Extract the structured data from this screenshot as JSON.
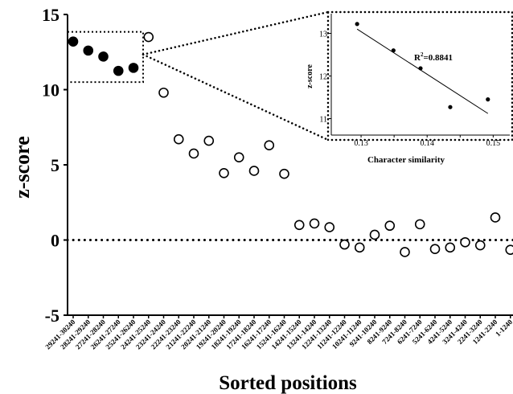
{
  "chart_data": [
    {
      "type": "scatter",
      "title": "",
      "xlabel": "Sorted positions",
      "ylabel": "z-score",
      "ylim": [
        -5,
        15
      ],
      "yticks": [
        "-5",
        "0",
        "5",
        "10",
        "15"
      ],
      "categories": [
        "29241-30240",
        "28241-29240",
        "27241-28240",
        "26241-27240",
        "25241-26240",
        "24241-25240",
        "23241-24240",
        "22241-23240",
        "21241-22240",
        "20241-21240",
        "19241-20240",
        "18241-19240",
        "17241-18240",
        "16241-17240",
        "15241-16240",
        "14241-15240",
        "13241-14240",
        "12241-13240",
        "11241-12240",
        "10241-11240",
        "9241-10240",
        "8241-9240",
        "7241-8240",
        "6241-7240",
        "5241-6240",
        "4241-5240",
        "3241-4240",
        "2241-3240",
        "1241-2240",
        "1-1240"
      ],
      "series": [
        {
          "values": [
            13.2,
            12.6,
            12.2,
            11.25,
            11.45,
            13.5,
            9.8,
            6.7,
            5.75,
            6.6,
            4.45,
            5.5,
            4.6,
            6.3,
            4.4,
            1.0,
            1.1,
            0.85,
            -0.3,
            -0.5,
            0.35,
            0.95,
            -0.8,
            1.05,
            -0.6,
            -0.5,
            -0.15,
            -0.35,
            1.5,
            -0.65
          ],
          "filled": [
            true,
            true,
            true,
            true,
            true,
            false,
            false,
            false,
            false,
            false,
            false,
            false,
            false,
            false,
            false,
            false,
            false,
            false,
            false,
            false,
            false,
            false,
            false,
            false,
            false,
            false,
            false,
            false,
            false,
            false
          ]
        }
      ],
      "reference_line": {
        "y": 0,
        "style": "dotted"
      },
      "grid": false,
      "legend": "none",
      "highlight_box": {
        "from_index": 0,
        "to_index": 4,
        "style": "dotted"
      }
    },
    {
      "type": "scatter",
      "title": "",
      "xlabel": "Character similarity",
      "ylabel": "z-score",
      "xticks": [
        "0.13",
        "0.135",
        "0.14",
        "0.145",
        "0.15"
      ],
      "xtick_labels_shown": [
        "0.13",
        "0.14",
        "0.15"
      ],
      "yticks": [
        "11",
        "12",
        "13"
      ],
      "xlim": [
        0.125,
        0.153
      ],
      "ylim": [
        10.5,
        13.5
      ],
      "points": [
        {
          "x": 0.1294,
          "y": 13.22
        },
        {
          "x": 0.1349,
          "y": 12.6
        },
        {
          "x": 0.139,
          "y": 12.18
        },
        {
          "x": 0.1435,
          "y": 11.27
        },
        {
          "x": 0.1492,
          "y": 11.45
        }
      ],
      "fit_line": {
        "x": [
          0.1294,
          0.1492
        ],
        "y": [
          13.1,
          11.12
        ]
      },
      "annotation": {
        "label": "R",
        "sup": "2",
        "value": "=0.8841"
      },
      "grid": false,
      "legend": "none"
    }
  ],
  "colors": {
    "marker": "#000000",
    "background": "#ffffff",
    "axis": "#000000"
  }
}
